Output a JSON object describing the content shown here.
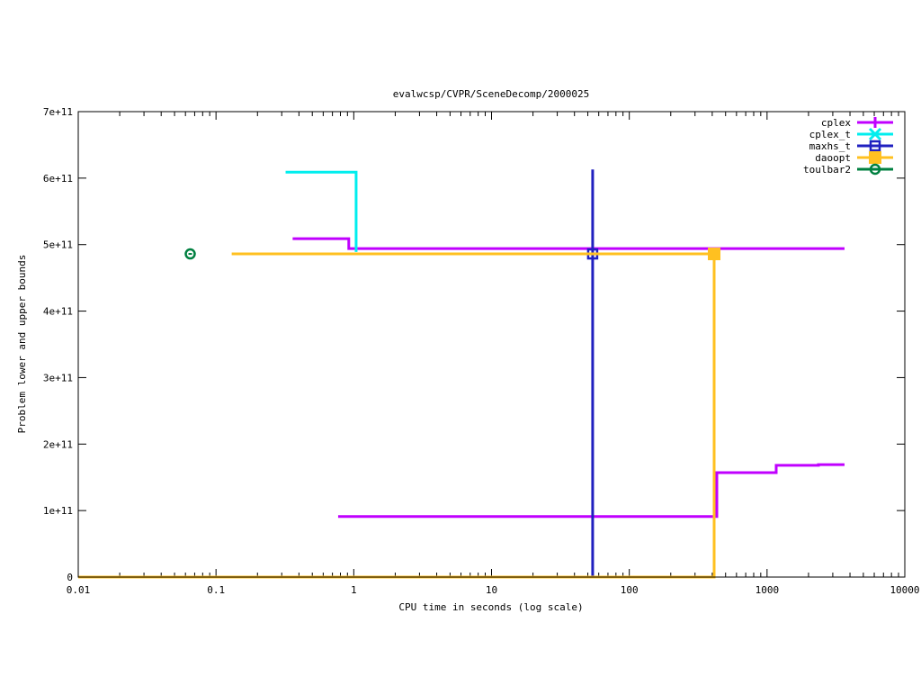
{
  "chart_data": {
    "type": "line",
    "title": "evalwcsp/CVPR/SceneDecomp/2000025",
    "xlabel": "CPU time in seconds (log scale)",
    "ylabel": "Problem lower and upper bounds",
    "xscale": "log",
    "xlim": [
      0.01,
      10000
    ],
    "ylim": [
      0,
      700000000000
    ],
    "xticks": [
      {
        "v": 0.01,
        "label": "0.01"
      },
      {
        "v": 0.1,
        "label": "0.1"
      },
      {
        "v": 1,
        "label": "1"
      },
      {
        "v": 10,
        "label": "10"
      },
      {
        "v": 100,
        "label": "100"
      },
      {
        "v": 1000,
        "label": "1000"
      },
      {
        "v": 10000,
        "label": "10000"
      }
    ],
    "yticks": [
      {
        "v": 0,
        "label": "0"
      },
      {
        "v": 100000000000.0,
        "label": "1e+11"
      },
      {
        "v": 200000000000.0,
        "label": "2e+11"
      },
      {
        "v": 300000000000.0,
        "label": "3e+11"
      },
      {
        "v": 400000000000.0,
        "label": "4e+11"
      },
      {
        "v": 500000000000.0,
        "label": "5e+11"
      },
      {
        "v": 600000000000.0,
        "label": "6e+11"
      },
      {
        "v": 700000000000.0,
        "label": "7e+11"
      }
    ],
    "grid": false,
    "legend_position": "top-right",
    "series": [
      {
        "name": "cplex",
        "color": "#c000ff",
        "marker": "plus",
        "lines": [
          [
            [
              0.36,
              509000000000.0
            ],
            [
              0.92,
              509000000000.0
            ],
            [
              0.92,
              494000000000.0
            ],
            [
              3650,
              494000000000.0
            ]
          ],
          [
            [
              0.77,
              91000000000.0
            ],
            [
              432,
              91000000000.0
            ],
            [
              432,
              157000000000.0
            ],
            [
              1165,
              157000000000.0
            ],
            [
              1165,
              168000000000.0
            ],
            [
              2360,
              168000000000.0
            ],
            [
              2360,
              169000000000.0
            ],
            [
              3650,
              169000000000.0
            ]
          ]
        ],
        "markers": []
      },
      {
        "name": "cplex_t",
        "color": "#00eeee",
        "marker": "x",
        "lines": [
          [
            [
              0.32,
              609000000000.0
            ],
            [
              1.04,
              609000000000.0
            ],
            [
              1.04,
              489000000000.0
            ]
          ]
        ],
        "markers": []
      },
      {
        "name": "maxhs_t",
        "color": "#2020c0",
        "marker": "square",
        "lines": [
          [
            [
              54.2,
              0
            ],
            [
              54.2,
              613000000000.0
            ]
          ]
        ],
        "markers": [
          [
            54.2,
            486000000000.0
          ]
        ]
      },
      {
        "name": "daoopt",
        "color": "#ffc020",
        "marker": "filled-square",
        "lines": [
          [
            [
              0.13,
              486000000000.0
            ],
            [
              413,
              486000000000.0
            ]
          ],
          [
            [
              0.01,
              0
            ],
            [
              413,
              0
            ],
            [
              413,
              486000000000.0
            ]
          ]
        ],
        "markers": [
          [
            413,
            486000000000.0
          ]
        ]
      },
      {
        "name": "toulbar2",
        "color": "#008040",
        "marker": "circle",
        "lines": [],
        "markers": [
          [
            0.065,
            486000000000.0
          ]
        ]
      }
    ]
  }
}
